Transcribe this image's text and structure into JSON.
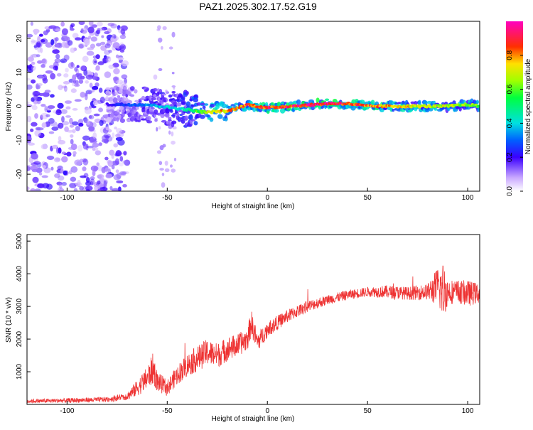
{
  "title": "PAZ1.2025.302.17.52.G19",
  "chart_data": [
    {
      "type": "heatmap",
      "xlabel": "Height of straight line (km)",
      "ylabel": "Frequency (Hz)",
      "xlim": [
        -120,
        106
      ],
      "ylim": [
        -25,
        25
      ],
      "xticks": [
        -100,
        -50,
        0,
        50,
        100
      ],
      "yticks": [
        -20,
        -10,
        0,
        10,
        20
      ],
      "colorbar": {
        "label": "Normalized spectral amplitude",
        "range": [
          0.0,
          1.0
        ],
        "ticks": [
          0.0,
          0.2,
          0.4,
          0.6,
          0.8
        ],
        "tick_labels": [
          "0.0",
          "0.2",
          "0.4",
          "0.6",
          "0.8"
        ]
      },
      "ridge": {
        "description_x": [
          -80,
          -60,
          -40,
          -35,
          -30,
          -25,
          -20,
          -15,
          -10,
          -5,
          0,
          10,
          20,
          30,
          40,
          50,
          60,
          70,
          80,
          90,
          100,
          106
        ],
        "frequency": [
          0.5,
          0.5,
          -1,
          -1.5,
          -1.8,
          -1.5,
          -1.5,
          -0.5,
          0.5,
          0,
          -0.5,
          0,
          0.3,
          0.8,
          0.8,
          0,
          0,
          0,
          0,
          0,
          0.5,
          0
        ],
        "amplitude": [
          0.2,
          0.35,
          0.45,
          0.6,
          0.7,
          0.75,
          0.8,
          0.8,
          0.85,
          0.9,
          0.9,
          0.9,
          0.95,
          0.95,
          0.9,
          0.85,
          0.8,
          0.75,
          0.7,
          0.7,
          0.65,
          0.6
        ]
      },
      "noise_region_x": [
        -120,
        -70
      ]
    },
    {
      "type": "line",
      "xlabel": "Height of straight line (km)",
      "ylabel": "SNR (10 * v/v)",
      "xlim": [
        -120,
        106
      ],
      "ylim": [
        0,
        5200
      ],
      "xticks": [
        -100,
        -50,
        0,
        50,
        100
      ],
      "yticks": [
        1000,
        2000,
        3000,
        4000,
        5000
      ],
      "series": [
        {
          "name": "SNR",
          "color": "#ee3333",
          "x": [
            -120,
            -100,
            -80,
            -70,
            -65,
            -60,
            -57,
            -55,
            -50,
            -45,
            -40,
            -35,
            -30,
            -25,
            -20,
            -15,
            -10,
            -8,
            -5,
            0,
            10,
            20,
            30,
            40,
            50,
            60,
            70,
            80,
            85,
            88,
            90,
            95,
            100,
            106
          ],
          "y": [
            100,
            120,
            150,
            250,
            500,
            800,
            1100,
            700,
            500,
            900,
            1200,
            1400,
            1600,
            1500,
            1700,
            1800,
            2000,
            2500,
            1900,
            2300,
            2700,
            3000,
            3200,
            3350,
            3450,
            3450,
            3400,
            3450,
            3600,
            3500,
            3450,
            3450,
            3400,
            3400
          ],
          "noise_amplitude": [
            60,
            70,
            80,
            120,
            250,
            350,
            500,
            300,
            250,
            300,
            350,
            400,
            400,
            380,
            380,
            350,
            350,
            400,
            300,
            250,
            200,
            180,
            150,
            150,
            150,
            200,
            200,
            250,
            600,
            900,
            400,
            350,
            400,
            300
          ]
        }
      ]
    }
  ]
}
